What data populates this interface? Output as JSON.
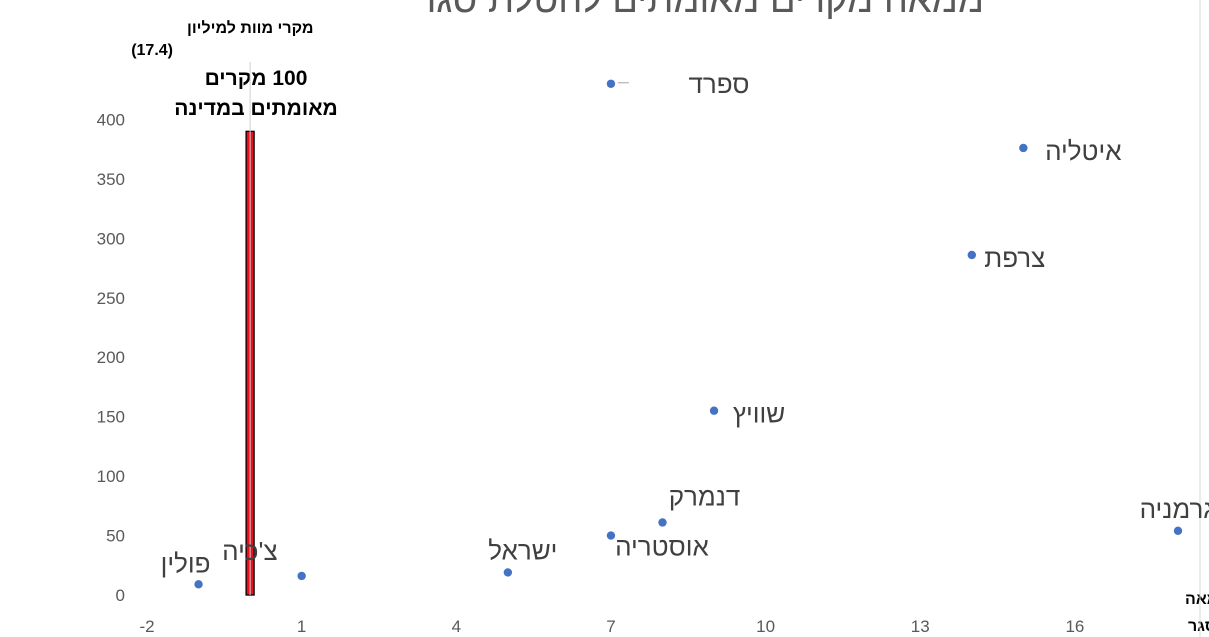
{
  "chart_data": {
    "type": "scatter",
    "title": "ממאה מקרים מאומתים להטלת סגר",
    "ylabel_lines": [
      "מקרי מוות למיליון",
      "(17.4)"
    ],
    "xlabel_lines": [
      "מספר ימים ממאה",
      "מקרים להטלת סגר"
    ],
    "xlim": [
      -2,
      18
    ],
    "ylim": [
      0,
      450
    ],
    "xticks": [
      -2,
      1,
      4,
      7,
      10,
      13,
      16
    ],
    "yticks": [
      0,
      50,
      100,
      150,
      200,
      250,
      300,
      350,
      400
    ],
    "grid": false,
    "marker_color": "#4472C4",
    "points": [
      {
        "label": "ספרד",
        "x": 7,
        "y": 430
      },
      {
        "label": "איטליה",
        "x": 15,
        "y": 376
      },
      {
        "label": "צרפת",
        "x": 14,
        "y": 286
      },
      {
        "label": "שוויץ",
        "x": 9,
        "y": 155
      },
      {
        "label": "דנמרק",
        "x": 8,
        "y": 61
      },
      {
        "label": "אוסטריה",
        "x": 7,
        "y": 50
      },
      {
        "label": "גרמניה",
        "x": 18,
        "y": 54
      },
      {
        "label": "ישראל",
        "x": 5,
        "y": 19
      },
      {
        "label": "צ'כיה",
        "x": 1,
        "y": 16
      },
      {
        "label": "פולין",
        "x": -1,
        "y": 9
      }
    ],
    "reference_bar": {
      "x": 0,
      "y": 390,
      "color": "#E8101E",
      "label_lines": [
        "100 מקרים",
        "מאומתים במדינה"
      ]
    }
  }
}
